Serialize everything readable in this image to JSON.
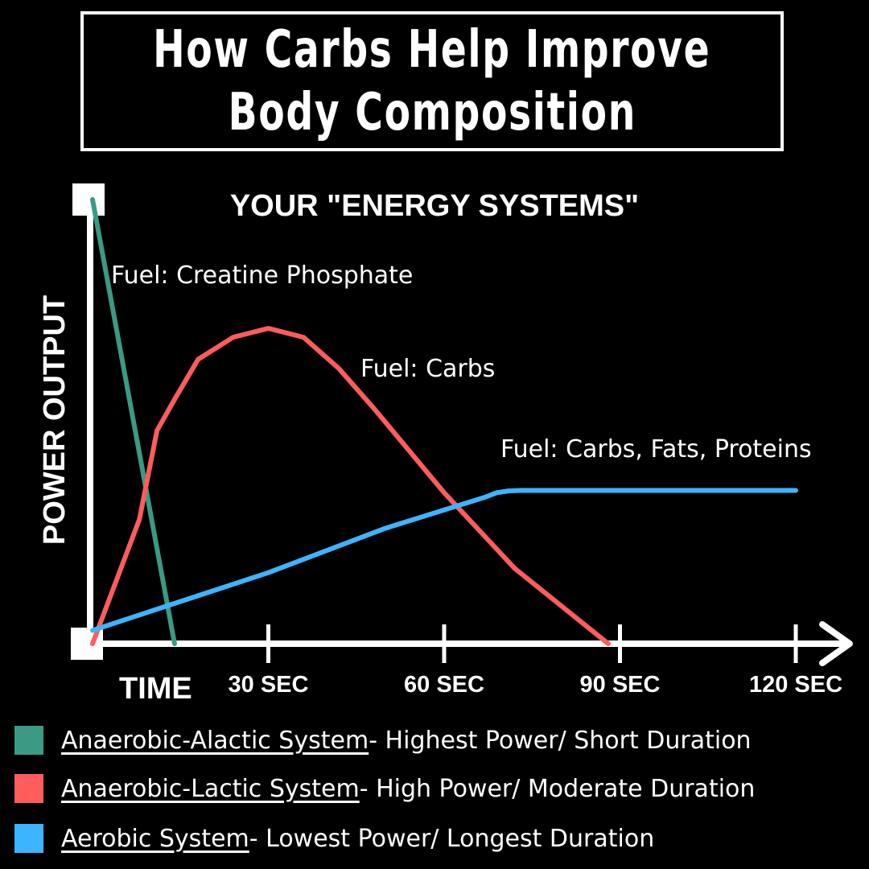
{
  "title": {
    "line1": "How Carbs Help Improve",
    "line2": "Body Composition"
  },
  "chart_data": {
    "type": "line",
    "title": "YOUR \"ENERGY SYSTEMS\"",
    "xlabel": "TIME",
    "ylabel": "POWER OUTPUT",
    "xlim": [
      0,
      120
    ],
    "ylim": [
      0,
      100
    ],
    "x_ticks": [
      {
        "value": 30,
        "label": "30 SEC"
      },
      {
        "value": 60,
        "label": "60 SEC"
      },
      {
        "value": 90,
        "label": "90 SEC"
      },
      {
        "value": 120,
        "label": "120 SEC"
      }
    ],
    "grid": false,
    "series": [
      {
        "name": "Anaerobic-Alactic System",
        "color": "#3a9a83",
        "annotation": "Fuel: Creatine Phosphate",
        "points": [
          [
            0,
            100
          ],
          [
            14,
            0
          ]
        ]
      },
      {
        "name": "Anaerobic-Lactic System",
        "color": "#ff5c5c",
        "annotation": "Fuel: Carbs",
        "points": [
          [
            0,
            0
          ],
          [
            8,
            28
          ],
          [
            11,
            48
          ],
          [
            14,
            55
          ],
          [
            18,
            64
          ],
          [
            24,
            69
          ],
          [
            30,
            71
          ],
          [
            36,
            69
          ],
          [
            42,
            62
          ],
          [
            48,
            53
          ],
          [
            60,
            34
          ],
          [
            72,
            17
          ],
          [
            88,
            0
          ]
        ]
      },
      {
        "name": "Aerobic System",
        "color": "#3cb4ff",
        "annotation": "Fuel: Carbs, Fats, Proteins",
        "points": [
          [
            0,
            3
          ],
          [
            30,
            16
          ],
          [
            50,
            26
          ],
          [
            67,
            33
          ],
          [
            69,
            34
          ],
          [
            71,
            34.4
          ],
          [
            73,
            34.5
          ],
          [
            120,
            34.5
          ]
        ]
      }
    ]
  },
  "legend": [
    {
      "name": "Anaerobic-Alactic System ",
      "desc": "- Highest Power/ Short Duration",
      "color": "#3a9a83"
    },
    {
      "name": "Anaerobic-Lactic System ",
      "desc": "- High Power/ Moderate Duration",
      "color": "#ff5c5c"
    },
    {
      "name": "Aerobic System ",
      "desc": "- Lowest Power/ Longest Duration",
      "color": "#3cb4ff"
    }
  ]
}
